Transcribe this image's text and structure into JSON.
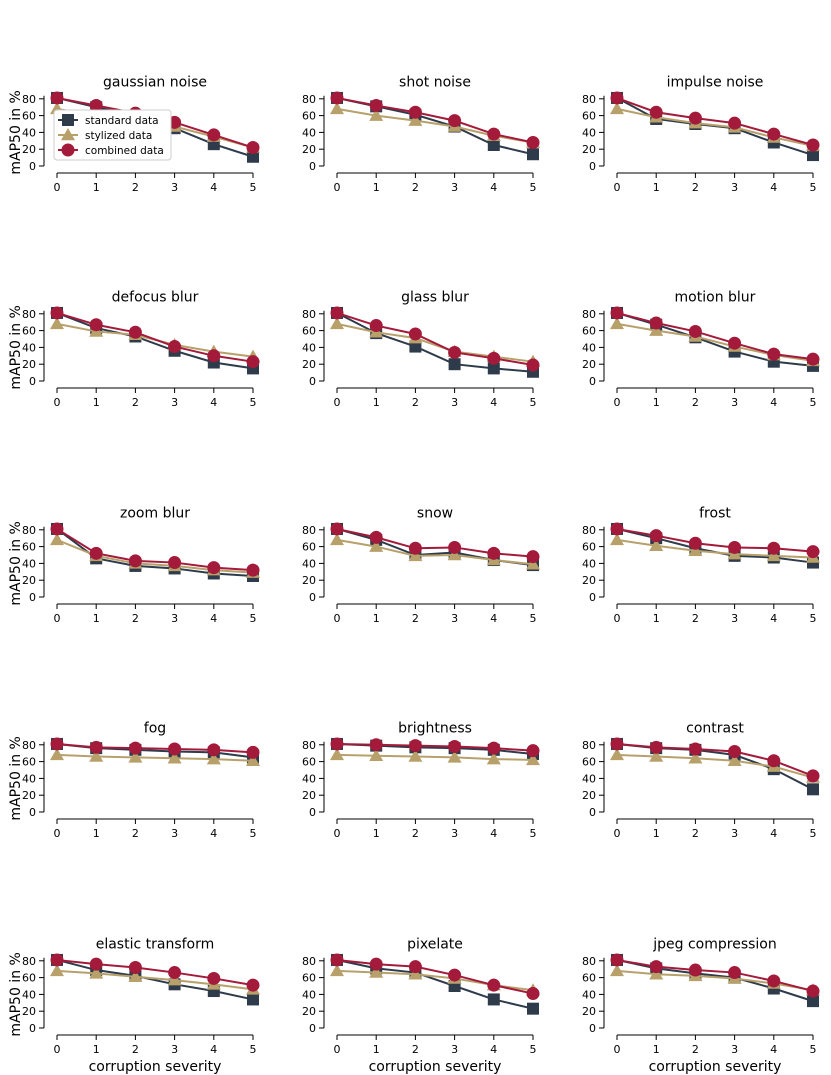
{
  "figure": {
    "ylabel": "mAP50 in %",
    "xlabel": "corruption severity",
    "legend": {
      "location": "lower-left of first panel",
      "entries": [
        "standard data",
        "stylized data",
        "combined data"
      ]
    }
  },
  "chart_data": [
    {
      "type": "line",
      "title": "gaussian noise",
      "x": [
        0,
        1,
        2,
        3,
        4,
        5
      ],
      "ylim": [
        0,
        85
      ],
      "series": [
        {
          "name": "standard data",
          "values": [
            81,
            70,
            60,
            45,
            26,
            11
          ]
        },
        {
          "name": "stylized data",
          "values": [
            68,
            60,
            54,
            47,
            35,
            22
          ]
        },
        {
          "name": "combined data",
          "values": [
            81,
            72,
            63,
            52,
            37,
            22
          ]
        }
      ]
    },
    {
      "type": "line",
      "title": "shot noise",
      "x": [
        0,
        1,
        2,
        3,
        4,
        5
      ],
      "ylim": [
        0,
        85
      ],
      "series": [
        {
          "name": "standard data",
          "values": [
            81,
            71,
            61,
            47,
            25,
            14
          ]
        },
        {
          "name": "stylized data",
          "values": [
            68,
            60,
            54,
            47,
            36,
            28
          ]
        },
        {
          "name": "combined data",
          "values": [
            81,
            72,
            64,
            54,
            38,
            28
          ]
        }
      ]
    },
    {
      "type": "line",
      "title": "impulse noise",
      "x": [
        0,
        1,
        2,
        3,
        4,
        5
      ],
      "ylim": [
        0,
        85
      ],
      "series": [
        {
          "name": "standard data",
          "values": [
            81,
            56,
            50,
            45,
            28,
            13
          ]
        },
        {
          "name": "stylized data",
          "values": [
            68,
            58,
            51,
            46,
            34,
            24
          ]
        },
        {
          "name": "combined data",
          "values": [
            81,
            64,
            57,
            51,
            38,
            25
          ]
        }
      ]
    },
    {
      "type": "line",
      "title": "defocus blur",
      "x": [
        0,
        1,
        2,
        3,
        4,
        5
      ],
      "ylim": [
        0,
        85
      ],
      "series": [
        {
          "name": "standard data",
          "values": [
            81,
            63,
            53,
            36,
            22,
            15
          ]
        },
        {
          "name": "stylized data",
          "values": [
            68,
            59,
            55,
            43,
            35,
            29
          ]
        },
        {
          "name": "combined data",
          "values": [
            81,
            67,
            58,
            41,
            30,
            23
          ]
        }
      ]
    },
    {
      "type": "line",
      "title": "glass blur",
      "x": [
        0,
        1,
        2,
        3,
        4,
        5
      ],
      "ylim": [
        0,
        85
      ],
      "series": [
        {
          "name": "standard data",
          "values": [
            81,
            57,
            41,
            20,
            15,
            11
          ]
        },
        {
          "name": "stylized data",
          "values": [
            68,
            58,
            51,
            35,
            29,
            23
          ]
        },
        {
          "name": "combined data",
          "values": [
            81,
            66,
            56,
            34,
            27,
            19
          ]
        }
      ]
    },
    {
      "type": "line",
      "title": "motion blur",
      "x": [
        0,
        1,
        2,
        3,
        4,
        5
      ],
      "ylim": [
        0,
        85
      ],
      "series": [
        {
          "name": "standard data",
          "values": [
            81,
            67,
            52,
            35,
            23,
            18
          ]
        },
        {
          "name": "stylized data",
          "values": [
            68,
            60,
            53,
            41,
            31,
            24
          ]
        },
        {
          "name": "combined data",
          "values": [
            81,
            69,
            59,
            45,
            32,
            26
          ]
        }
      ]
    },
    {
      "type": "line",
      "title": "zoom blur",
      "x": [
        0,
        1,
        2,
        3,
        4,
        5
      ],
      "ylim": [
        0,
        85
      ],
      "series": [
        {
          "name": "standard data",
          "values": [
            81,
            46,
            37,
            34,
            28,
            25
          ]
        },
        {
          "name": "stylized data",
          "values": [
            68,
            49,
            40,
            37,
            32,
            29
          ]
        },
        {
          "name": "combined data",
          "values": [
            81,
            52,
            43,
            41,
            35,
            32
          ]
        }
      ]
    },
    {
      "type": "line",
      "title": "snow",
      "x": [
        0,
        1,
        2,
        3,
        4,
        5
      ],
      "ylim": [
        0,
        85
      ],
      "series": [
        {
          "name": "standard data",
          "values": [
            81,
            68,
            50,
            53,
            44,
            38
          ]
        },
        {
          "name": "stylized data",
          "values": [
            68,
            60,
            49,
            50,
            44,
            39
          ]
        },
        {
          "name": "combined data",
          "values": [
            81,
            71,
            58,
            59,
            52,
            48
          ]
        }
      ]
    },
    {
      "type": "line",
      "title": "frost",
      "x": [
        0,
        1,
        2,
        3,
        4,
        5
      ],
      "ylim": [
        0,
        85
      ],
      "series": [
        {
          "name": "standard data",
          "values": [
            81,
            70,
            58,
            49,
            47,
            41
          ]
        },
        {
          "name": "stylized data",
          "values": [
            68,
            61,
            55,
            51,
            49,
            47
          ]
        },
        {
          "name": "combined data",
          "values": [
            81,
            73,
            64,
            59,
            58,
            54
          ]
        }
      ]
    },
    {
      "type": "line",
      "title": "fog",
      "x": [
        0,
        1,
        2,
        3,
        4,
        5
      ],
      "ylim": [
        0,
        85
      ],
      "series": [
        {
          "name": "standard data",
          "values": [
            81,
            76,
            74,
            72,
            71,
            65
          ]
        },
        {
          "name": "stylized data",
          "values": [
            68,
            66,
            65,
            64,
            63,
            61
          ]
        },
        {
          "name": "combined data",
          "values": [
            81,
            77,
            76,
            75,
            74,
            71
          ]
        }
      ]
    },
    {
      "type": "line",
      "title": "brightness",
      "x": [
        0,
        1,
        2,
        3,
        4,
        5
      ],
      "ylim": [
        0,
        85
      ],
      "series": [
        {
          "name": "standard data",
          "values": [
            81,
            79,
            77,
            76,
            74,
            69
          ]
        },
        {
          "name": "stylized data",
          "values": [
            68,
            67,
            66,
            65,
            63,
            62
          ]
        },
        {
          "name": "combined data",
          "values": [
            81,
            80,
            79,
            78,
            76,
            73
          ]
        }
      ]
    },
    {
      "type": "line",
      "title": "contrast",
      "x": [
        0,
        1,
        2,
        3,
        4,
        5
      ],
      "ylim": [
        0,
        85
      ],
      "series": [
        {
          "name": "standard data",
          "values": [
            81,
            76,
            74,
            68,
            51,
            27
          ]
        },
        {
          "name": "stylized data",
          "values": [
            68,
            66,
            64,
            61,
            54,
            41
          ]
        },
        {
          "name": "combined data",
          "values": [
            81,
            77,
            75,
            72,
            61,
            43
          ]
        }
      ]
    },
    {
      "type": "line",
      "title": "elastic transform",
      "x": [
        0,
        1,
        2,
        3,
        4,
        5
      ],
      "ylim": [
        0,
        85
      ],
      "series": [
        {
          "name": "standard data",
          "values": [
            81,
            69,
            62,
            52,
            44,
            34
          ]
        },
        {
          "name": "stylized data",
          "values": [
            68,
            65,
            61,
            57,
            52,
            46
          ]
        },
        {
          "name": "combined data",
          "values": [
            81,
            76,
            72,
            66,
            59,
            51
          ]
        }
      ]
    },
    {
      "type": "line",
      "title": "pixelate",
      "x": [
        0,
        1,
        2,
        3,
        4,
        5
      ],
      "ylim": [
        0,
        85
      ],
      "series": [
        {
          "name": "standard data",
          "values": [
            81,
            71,
            66,
            50,
            34,
            23
          ]
        },
        {
          "name": "stylized data",
          "values": [
            68,
            66,
            64,
            59,
            51,
            45
          ]
        },
        {
          "name": "combined data",
          "values": [
            81,
            76,
            73,
            63,
            51,
            41
          ]
        }
      ]
    },
    {
      "type": "line",
      "title": "jpeg compression",
      "x": [
        0,
        1,
        2,
        3,
        4,
        5
      ],
      "ylim": [
        0,
        85
      ],
      "series": [
        {
          "name": "standard data",
          "values": [
            81,
            71,
            65,
            60,
            47,
            32
          ]
        },
        {
          "name": "stylized data",
          "values": [
            68,
            64,
            62,
            59,
            53,
            45
          ]
        },
        {
          "name": "combined data",
          "values": [
            81,
            73,
            69,
            66,
            56,
            44
          ]
        }
      ]
    }
  ],
  "axis": {
    "yticks": [
      "0",
      "20",
      "40",
      "60",
      "80"
    ],
    "xticks": [
      "0",
      "1",
      "2",
      "3",
      "4",
      "5"
    ]
  },
  "style": {
    "series_colors": [
      "#2e3b4b",
      "#b8a06b",
      "#a31a3a"
    ],
    "series_markers": [
      "square",
      "triangle",
      "circle"
    ]
  }
}
